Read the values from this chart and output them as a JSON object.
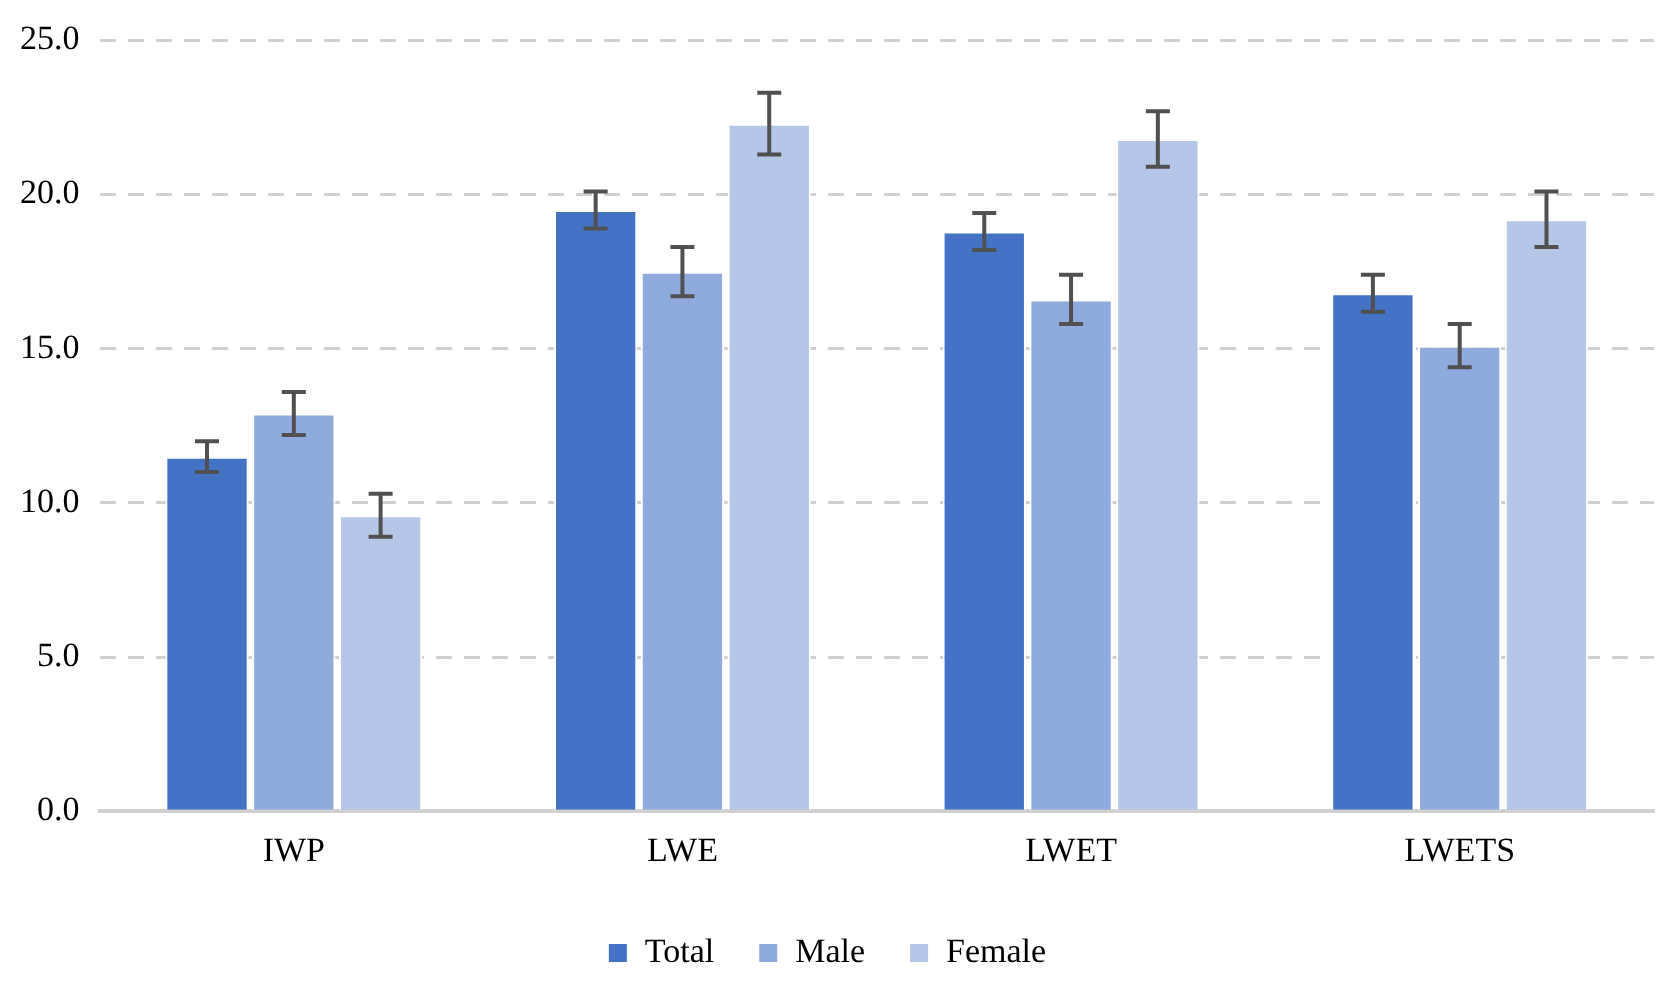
{
  "chart_data": {
    "type": "bar",
    "categories": [
      "IWP",
      "LWE",
      "LWET",
      "LWETS"
    ],
    "series": [
      {
        "name": "Total",
        "color": "#4472c4",
        "values": [
          11.5,
          19.5,
          18.8,
          16.8
        ],
        "errors": [
          0.5,
          0.6,
          0.6,
          0.6
        ]
      },
      {
        "name": "Male",
        "color": "#8faadc",
        "values": [
          12.9,
          17.5,
          16.6,
          15.1
        ],
        "errors": [
          0.7,
          0.8,
          0.8,
          0.7
        ]
      },
      {
        "name": "Female",
        "color": "#b4c7e7",
        "values": [
          9.6,
          22.3,
          21.8,
          19.2
        ],
        "errors": [
          0.7,
          1.0,
          0.9,
          0.9
        ]
      }
    ],
    "ylim": [
      0,
      25
    ],
    "yticks": [
      {
        "value": 0,
        "label": "0.0"
      },
      {
        "value": 5,
        "label": "5.0"
      },
      {
        "value": 10,
        "label": "10.0"
      },
      {
        "value": 15,
        "label": "15.0"
      },
      {
        "value": 20,
        "label": "20.0"
      },
      {
        "value": 25,
        "label": "25.0"
      }
    ],
    "grid": "y",
    "legend": "bottom"
  }
}
